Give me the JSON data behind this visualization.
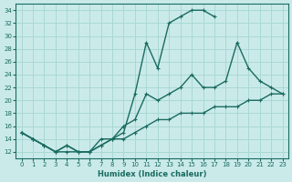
{
  "xlabel": "Humidex (Indice chaleur)",
  "ylabel": "",
  "bg_color": "#caeaea",
  "grid_color": "#a8d8d4",
  "line_color": "#1a6b60",
  "xlim": [
    -0.5,
    23.5
  ],
  "ylim": [
    11,
    35
  ],
  "xticks": [
    0,
    1,
    2,
    3,
    4,
    5,
    6,
    7,
    8,
    9,
    10,
    11,
    12,
    13,
    14,
    15,
    16,
    17,
    18,
    19,
    20,
    21,
    22,
    23
  ],
  "yticks": [
    12,
    14,
    16,
    18,
    20,
    22,
    24,
    26,
    28,
    30,
    32,
    34
  ],
  "line1_x": [
    0,
    1,
    2,
    3,
    4,
    5,
    6,
    7,
    8,
    9,
    10,
    11,
    12,
    13,
    14,
    15,
    16,
    17
  ],
  "line1_y": [
    15,
    14,
    13,
    12,
    12,
    12,
    12,
    13,
    14,
    15,
    21,
    29,
    25,
    32,
    33,
    34,
    34,
    33
  ],
  "line2_x": [
    0,
    1,
    2,
    3,
    4,
    5,
    6,
    7,
    8,
    9,
    10,
    11,
    12,
    13,
    14,
    15,
    16,
    17,
    18,
    19,
    20,
    21,
    22,
    23
  ],
  "line2_y": [
    15,
    14,
    13,
    12,
    13,
    12,
    12,
    14,
    14,
    16,
    17,
    21,
    20,
    21,
    22,
    24,
    22,
    22,
    23,
    29,
    25,
    23,
    22,
    21
  ],
  "line3_x": [
    0,
    1,
    2,
    3,
    4,
    5,
    6,
    7,
    8,
    9,
    10,
    11,
    12,
    13,
    14,
    15,
    16,
    17,
    18,
    19,
    20,
    21,
    22,
    23
  ],
  "line3_y": [
    15,
    14,
    13,
    12,
    13,
    12,
    12,
    13,
    14,
    14,
    15,
    16,
    17,
    17,
    18,
    18,
    18,
    19,
    19,
    19,
    20,
    20,
    21,
    21
  ],
  "marker_size": 3,
  "line_width": 1.0
}
